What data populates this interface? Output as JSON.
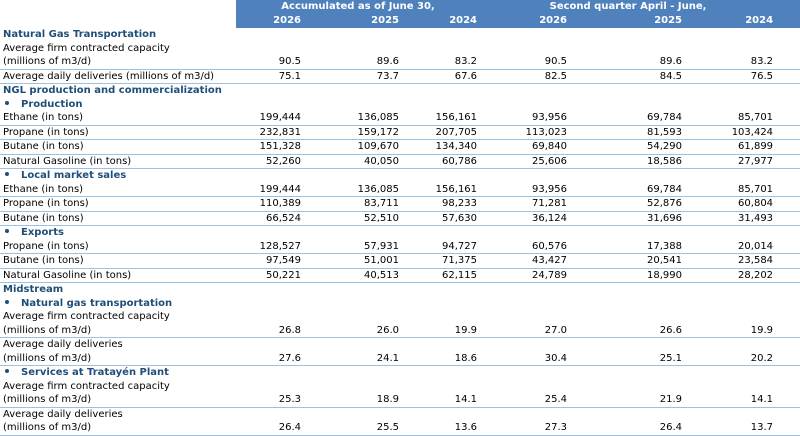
{
  "header": {
    "group1": "Accumulated as of June 30,",
    "group2": "Second quarter April - June,",
    "years": [
      "2026",
      "2025",
      "2024",
      "2026",
      "2025",
      "2024"
    ]
  },
  "sections": [
    {
      "title": "Natural Gas Transportation",
      "rows": [
        {
          "label": [
            "Average firm contracted capacity",
            "(millions of m3/d)"
          ],
          "values": [
            "90.5",
            "89.6",
            "83.2",
            "90.5",
            "89.6",
            "83.2"
          ]
        },
        {
          "label": [
            "Average daily deliveries (millions of m3/d)"
          ],
          "values": [
            "75.1",
            "73.7",
            "67.6",
            "82.5",
            "84.5",
            "76.5"
          ]
        }
      ]
    },
    {
      "title": "NGL production and commercialization",
      "groups": [
        {
          "title": "Production",
          "rows": [
            {
              "label": [
                "Ethane (in tons)"
              ],
              "values": [
                "199,444",
                "136,085",
                "156,161",
                "93,956",
                "69,784",
                "85,701"
              ]
            },
            {
              "label": [
                "Propane (in tons)"
              ],
              "values": [
                "232,831",
                "159,172",
                "207,705",
                "113,023",
                "81,593",
                "103,424"
              ]
            },
            {
              "label": [
                "Butane (in tons)"
              ],
              "values": [
                "151,328",
                "109,670",
                "134,340",
                "69,840",
                "54,290",
                "61,899"
              ]
            },
            {
              "label": [
                "Natural Gasoline (in tons)"
              ],
              "values": [
                "52,260",
                "40,050",
                "60,786",
                "25,606",
                "18,586",
                "27,977"
              ]
            }
          ]
        },
        {
          "title": "Local market sales",
          "rows": [
            {
              "label": [
                "Ethane (in tons)"
              ],
              "values": [
                "199,444",
                "136,085",
                "156,161",
                "93,956",
                "69,784",
                "85,701"
              ]
            },
            {
              "label": [
                "Propane (in tons)"
              ],
              "values": [
                "110,389",
                "83,711",
                "98,233",
                "71,281",
                "52,876",
                "60,804"
              ]
            },
            {
              "label": [
                "Butane (in tons)"
              ],
              "values": [
                "66,524",
                "52,510",
                "57,630",
                "36,124",
                "31,696",
                "31,493"
              ]
            }
          ]
        },
        {
          "title": "Exports",
          "rows": [
            {
              "label": [
                "Propane (in tons)"
              ],
              "values": [
                "128,527",
                "57,931",
                "94,727",
                "60,576",
                "17,388",
                "20,014"
              ]
            },
            {
              "label": [
                "Butane (in tons)"
              ],
              "values": [
                "97,549",
                "51,001",
                "71,375",
                "43,427",
                "20,541",
                "23,584"
              ]
            },
            {
              "label": [
                "Natural Gasoline (in tons)"
              ],
              "values": [
                "50,221",
                "40,513",
                "62,115",
                "24,789",
                "18,990",
                "28,202"
              ]
            }
          ]
        }
      ]
    },
    {
      "title": "Midstream",
      "groups": [
        {
          "title": "Natural gas transportation",
          "rows": [
            {
              "label": [
                "Average firm contracted capacity",
                "(millions of m3/d)"
              ],
              "values": [
                "26.8",
                "26.0",
                "19.9",
                "27.0",
                "26.6",
                "19.9"
              ]
            },
            {
              "label": [
                "Average daily deliveries",
                "(millions of m3/d)"
              ],
              "values": [
                "27.6",
                "24.1",
                "18.6",
                "30.4",
                "25.1",
                "20.2"
              ]
            }
          ]
        },
        {
          "title": "Services at Tratayén Plant",
          "rows": [
            {
              "label": [
                "Average firm contracted capacity",
                "(millions of m3/d)"
              ],
              "values": [
                "25.3",
                "18.9",
                "14.1",
                "25.4",
                "21.9",
                "14.1"
              ]
            },
            {
              "label": [
                "Average daily deliveries",
                "(millions of m3/d)"
              ],
              "values": [
                "26.4",
                "25.5",
                "13.6",
                "27.3",
                "26.4",
                "13.7"
              ]
            }
          ]
        }
      ]
    }
  ]
}
